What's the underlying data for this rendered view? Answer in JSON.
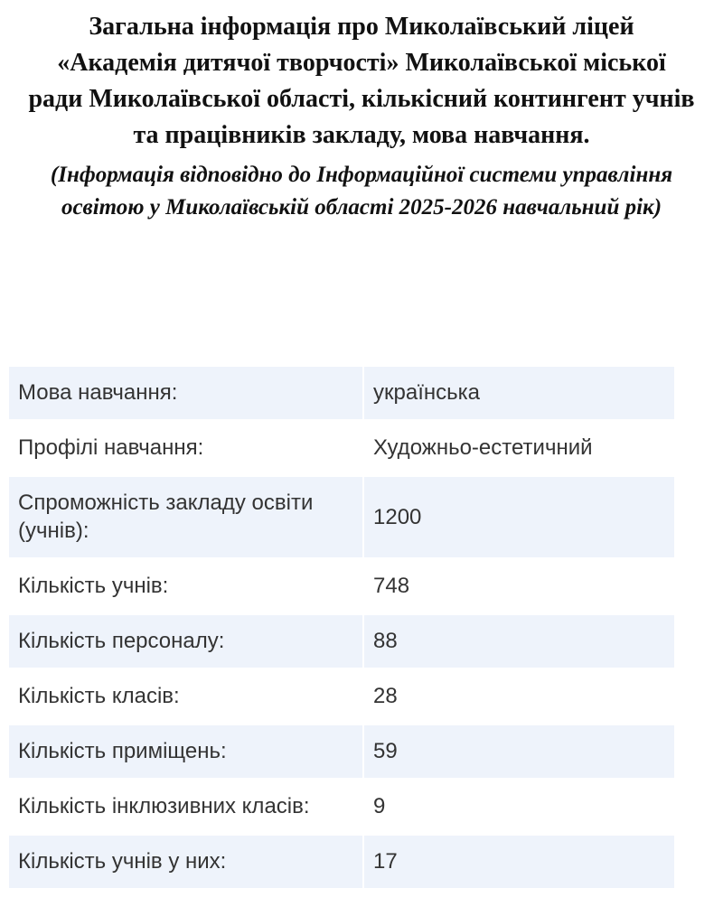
{
  "title": "Загальна інформація про Миколаївський ліцей «Академія дитячої творчості» Миколаївської міської ради Миколаївської області, кількісний контингент учнів та працівників закладу, мова навчання.",
  "subtitle": "(Інформація відповідно до Інформаційної системи управління освітою у Миколаївській області 2025-2026 навчальний рік)",
  "table": {
    "rows": [
      [
        "Мова навчання:",
        "українська"
      ],
      [
        "Профілі навчання:",
        "Художньо-естетичний"
      ],
      [
        "Спроможність закладу освіти (учнів):",
        1200
      ],
      [
        "Кількість учнів:",
        748
      ],
      [
        "Кількість персоналу:",
        88
      ],
      [
        "Кількість класів:",
        28
      ],
      [
        "Кількість приміщень:",
        59
      ],
      [
        "Кількість інклюзивних класів:",
        9
      ],
      [
        "Кількість учнів у них:",
        17
      ]
    ]
  }
}
